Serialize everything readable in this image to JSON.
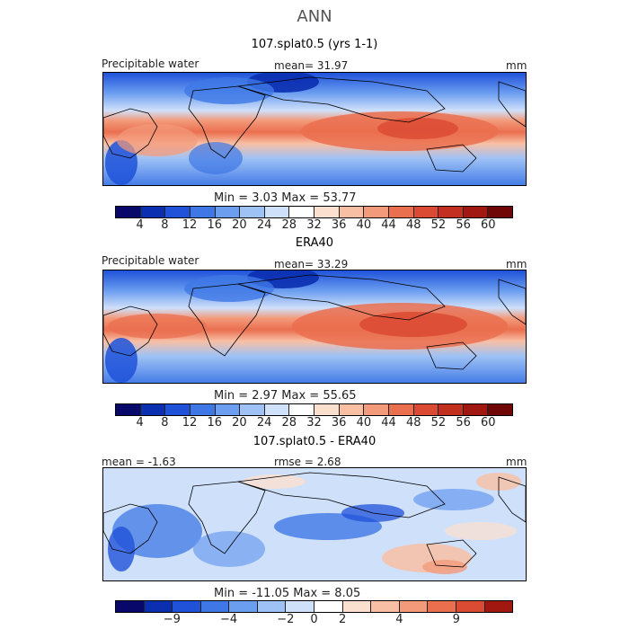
{
  "header": {
    "title": "ANN"
  },
  "colors": {
    "panel_bar": [
      "#08086b",
      "#0a2fb0",
      "#1f52d9",
      "#3f78e6",
      "#6c9ef0",
      "#9fc2f6",
      "#cfe0fa",
      "#ffffff",
      "#fbe0d0",
      "#f8bfa4",
      "#f39a7a",
      "#ea6f4f",
      "#db4a32",
      "#c4301f",
      "#a01810",
      "#700707"
    ],
    "diff_bar": [
      "#08086b",
      "#0a2fb0",
      "#1f52d9",
      "#3f78e6",
      "#6c9ef0",
      "#9fc2f6",
      "#cfe0fa",
      "#ffffff",
      "#fbe0d0",
      "#f8bfa4",
      "#f39a7a",
      "#ea6f4f",
      "#db4a32",
      "#a01810"
    ]
  },
  "panels": [
    {
      "title": "107.splat0.5 (yrs 1-1)",
      "left_label": "Precipitable water",
      "center_label": "mean=   31.97",
      "right_label": "mm",
      "minmax": "Min =     3.03  Max =   53.77",
      "ticks": [
        "4",
        "8",
        "12",
        "16",
        "20",
        "24",
        "28",
        "32",
        "36",
        "40",
        "44",
        "48",
        "52",
        "56",
        "60"
      ]
    },
    {
      "title": "ERA40",
      "left_label": "Precipitable water",
      "center_label": "mean=   33.29",
      "right_label": "mm",
      "minmax": "Min =     2.97  Max =   55.65",
      "ticks": [
        "4",
        "8",
        "12",
        "16",
        "20",
        "24",
        "28",
        "32",
        "36",
        "40",
        "44",
        "48",
        "52",
        "56",
        "60"
      ]
    },
    {
      "title": "107.splat0.5 - ERA40",
      "left_label": "mean =   -1.63",
      "center_label": "rmse =     2.68",
      "right_label": "mm",
      "minmax": "Min = -11.05  Max =    8.05",
      "ticks": [
        "−9",
        "−4",
        "−2",
        "0",
        "2",
        "4",
        "9"
      ]
    }
  ]
}
